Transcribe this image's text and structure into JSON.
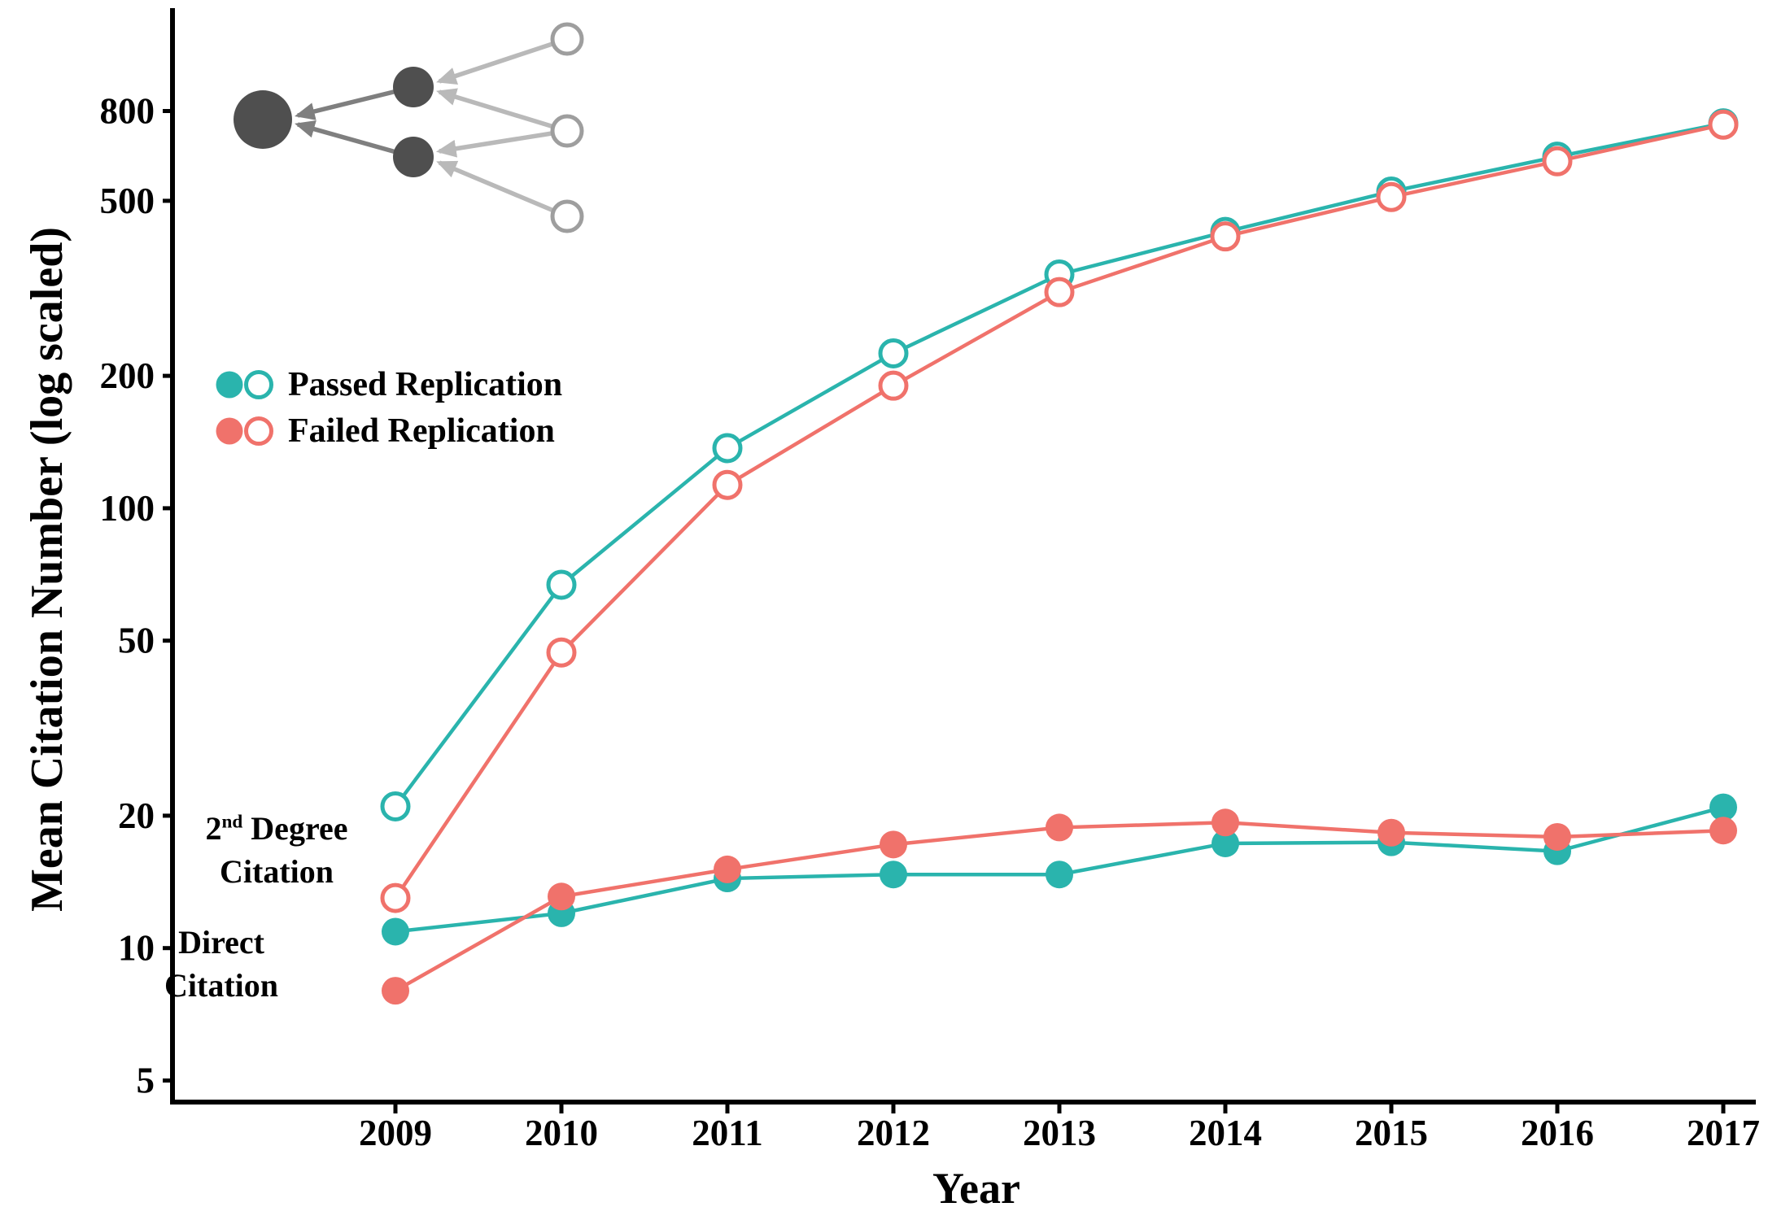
{
  "axes": {
    "y_title": "Mean Citation Number (log scaled)",
    "x_title": "Year"
  },
  "legend": {
    "items": [
      {
        "key": "passed",
        "label": "Passed Replication"
      },
      {
        "key": "failed",
        "label": "Failed Replication"
      }
    ]
  },
  "annotations": {
    "second_degree": {
      "line1_base": "2",
      "line1_sup": "nd",
      "line1_rest": " Degree",
      "line2": "Citation"
    },
    "direct": {
      "line1": "Direct",
      "line2": "Citation"
    }
  },
  "colors": {
    "passed": "#2ab4ad",
    "failed": "#f0726b",
    "axis": "#000000",
    "network_dark_node": "#4f4f4f",
    "network_dark_edge": "#7f7f7f",
    "network_open_node_stroke": "#9e9e9e",
    "network_light_edge": "#b9b9b9"
  },
  "chart_data": {
    "type": "line",
    "title": "",
    "xlabel": "Year",
    "ylabel": "Mean Citation Number (log scaled)",
    "y_scale": "log10",
    "ylim": [
      4.5,
      1000
    ],
    "grid": false,
    "legend_position": "inside-upper-left",
    "x": [
      2009,
      2010,
      2011,
      2012,
      2013,
      2014,
      2015,
      2016,
      2017
    ],
    "y_ticks": [
      5,
      10,
      20,
      50,
      100,
      200,
      500,
      800
    ],
    "series": [
      {
        "key": "passed-second-degree",
        "name": "Passed Replication - 2nd Degree Citation",
        "color_key": "passed",
        "marker": "open",
        "values": [
          21,
          67,
          137,
          225,
          340,
          425,
          525,
          630,
          750
        ]
      },
      {
        "key": "failed-second-degree",
        "name": "Failed Replication - 2nd Degree Citation",
        "color_key": "failed",
        "marker": "open",
        "values": [
          13,
          47,
          113,
          190,
          310,
          415,
          510,
          615,
          745
        ]
      },
      {
        "key": "passed-direct",
        "name": "Passed Replication - Direct Citation",
        "color_key": "passed",
        "marker": "filled",
        "values": [
          10.9,
          12.0,
          14.4,
          14.7,
          14.7,
          17.3,
          17.4,
          16.6,
          20.9
        ]
      },
      {
        "key": "failed-direct",
        "name": "Failed Replication - Direct Citation",
        "color_key": "failed",
        "marker": "filled",
        "values": [
          8.0,
          13.1,
          15.1,
          17.2,
          18.8,
          19.3,
          18.3,
          17.9,
          18.5
        ]
      }
    ]
  }
}
